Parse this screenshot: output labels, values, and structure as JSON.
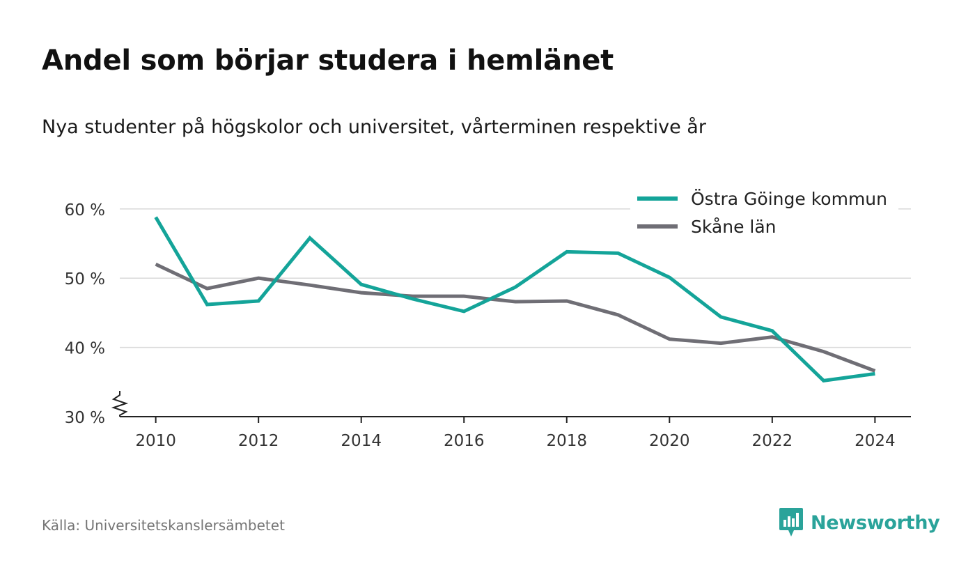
{
  "title": "Andel som börjar studera i hemlänet",
  "subtitle": "Nya studenter på högskolor och universitet, vårterminen respektive år",
  "source": "Källa: Universitetskanslersämbetet",
  "brand": {
    "name": "Newsworthy",
    "icon": "newsworthy-logo-icon",
    "color": "#2aa39a"
  },
  "chart_data": {
    "type": "line",
    "x": [
      2010,
      2011,
      2012,
      2013,
      2014,
      2015,
      2016,
      2017,
      2018,
      2019,
      2020,
      2021,
      2022,
      2023,
      2024
    ],
    "x_ticks": [
      2010,
      2012,
      2014,
      2016,
      2018,
      2020,
      2022,
      2024
    ],
    "x_tick_labels": [
      "2010",
      "2012",
      "2014",
      "2016",
      "2018",
      "2020",
      "2022",
      "2024"
    ],
    "y_ticks": [
      30,
      40,
      50,
      60
    ],
    "y_tick_labels": [
      "30 %",
      "40 %",
      "50 %",
      "60 %"
    ],
    "ylim": [
      30,
      63
    ],
    "xlim": [
      2009.3,
      2024.7
    ],
    "grid": true,
    "axis_break": true,
    "legend_position": "top-right",
    "series": [
      {
        "name": "Östra Göinge kommun",
        "color": "#14a499",
        "values": [
          58.8,
          46.2,
          46.7,
          55.8,
          49.1,
          47.0,
          45.2,
          48.7,
          53.8,
          53.6,
          50.1,
          44.4,
          42.4,
          35.2,
          36.2
        ]
      },
      {
        "name": "Skåne län",
        "color": "#6f6e75",
        "values": [
          52.0,
          48.5,
          50.0,
          49.0,
          47.9,
          47.4,
          47.4,
          46.6,
          46.7,
          44.7,
          41.2,
          40.6,
          41.5,
          39.4,
          36.6
        ]
      }
    ]
  }
}
